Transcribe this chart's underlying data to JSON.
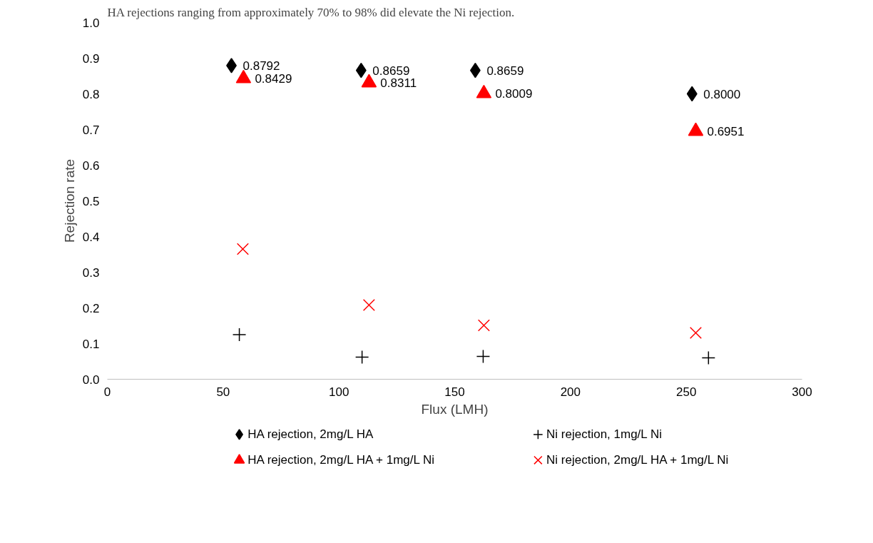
{
  "chart_data": {
    "type": "scatter",
    "xlabel": "Flux (LMH)",
    "ylabel": "Rejection rate",
    "annotations": [
      "HA rejections ranging from approximately 70% to 98% did elevate the Ni rejection."
    ],
    "xlim": [
      0,
      300
    ],
    "xticks": [
      0,
      50,
      100,
      150,
      200,
      250,
      300
    ],
    "ylim": [
      0,
      1
    ],
    "yticks": [
      {
        "value": 0,
        "label": "0.0"
      },
      {
        "value": 0.1,
        "label": "0.1"
      },
      {
        "value": 0.2,
        "label": "0.2"
      },
      {
        "value": 0.3,
        "label": "0.3"
      },
      {
        "value": 0.4,
        "label": "0.4"
      },
      {
        "value": 0.5,
        "label": "0.5"
      },
      {
        "value": 0.6,
        "label": "0.6"
      },
      {
        "value": 0.7,
        "label": "0.7"
      },
      {
        "value": 0.8,
        "label": "0.8"
      },
      {
        "value": 0.9,
        "label": "0.9"
      },
      {
        "value": 1,
        "label": "1.0"
      }
    ],
    "grid": false,
    "legend": "bottom",
    "series": [
      {
        "name": "HA rejection, 2mg/L HA",
        "color": "#000000",
        "marker": "diamond",
        "x": [
          53.6,
          109.6,
          158.9,
          252.5
        ],
        "values": [
          0.8792,
          0.8659,
          0.8659,
          0.8
        ],
        "value_labels": [
          "0.8792",
          "0.8659",
          "0.8659",
          "0.8000"
        ]
      },
      {
        "name": "Ni rejection, 1mg/L Ni",
        "color": "#000000",
        "marker": "cross",
        "x": [
          57,
          110,
          162.3,
          259.6
        ],
        "values": [
          0.125,
          0.062,
          0.064,
          0.06
        ]
      },
      {
        "name": "HA rejection, 2mg/L HA + 1mg/L Ni",
        "color": "#ff0000",
        "marker": "triangle",
        "x": [
          58.8,
          113,
          162.6,
          254.1
        ],
        "values": [
          0.8429,
          0.8311,
          0.8009,
          0.6951
        ],
        "value_labels": [
          "0.8429",
          "0.8311",
          "0.8009",
          "0.6951"
        ]
      },
      {
        "name": "Ni rejection, 2mg/L HA + 1mg/L Ni",
        "color": "#ff0000",
        "marker": "x",
        "x": [
          58.5,
          113,
          162.6,
          254.1
        ],
        "values": [
          0.365,
          0.208,
          0.151,
          0.13
        ]
      }
    ]
  }
}
